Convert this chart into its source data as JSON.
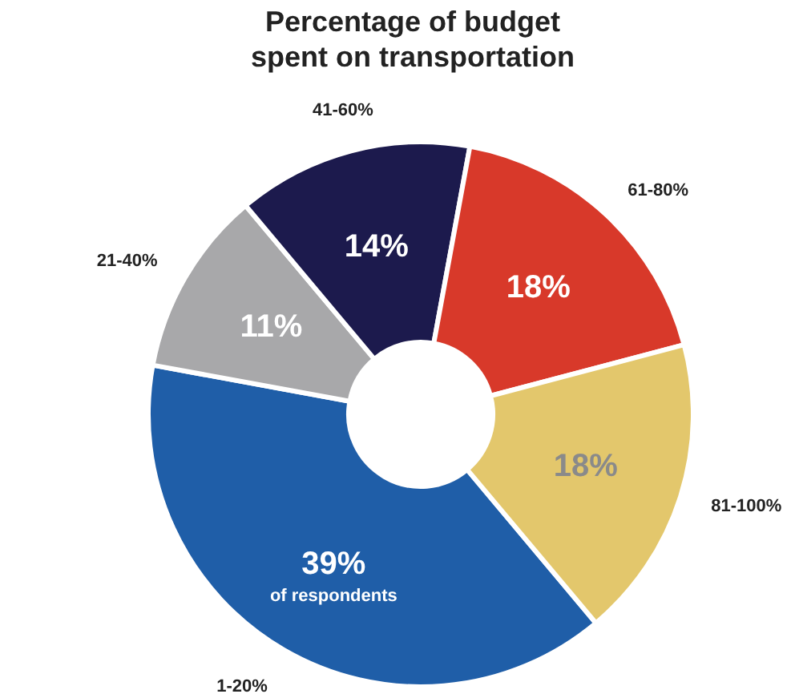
{
  "chart_data": {
    "type": "donut",
    "title": "Percentage of budget\nspent on transportation",
    "categories": [
      "1-20%",
      "21-40%",
      "41-60%",
      "61-80%",
      "81-100%"
    ],
    "values": [
      39,
      11,
      14,
      18,
      18
    ],
    "colors": [
      "#1f5ea8",
      "#a8a8aa",
      "#1c1a4d",
      "#d8392a",
      "#e3c76c"
    ],
    "value_labels": [
      "39%",
      "11%",
      "14%",
      "18%",
      "18%"
    ],
    "annotations": [
      {
        "text": "of respondents",
        "x": "1-20%"
      }
    ]
  }
}
